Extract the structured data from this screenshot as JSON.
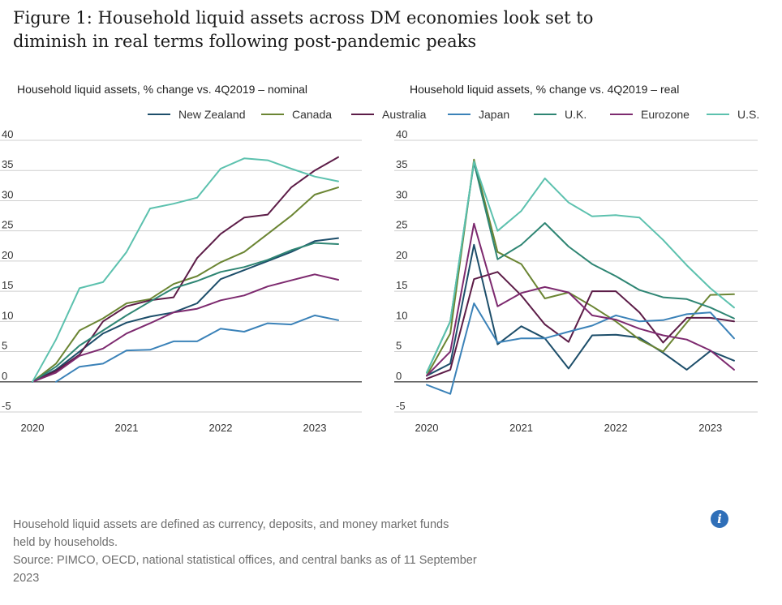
{
  "figure": {
    "title_line1": "Figure 1: Household liquid assets across DM economies look set to",
    "title_line2": "diminish in real terms following post-pandemic peaks"
  },
  "legend": [
    {
      "name": "New Zealand",
      "color": "#1d4e6a"
    },
    {
      "name": "Canada",
      "color": "#6b8533"
    },
    {
      "name": "Australia",
      "color": "#5c1c47"
    },
    {
      "name": "Japan",
      "color": "#3b82b8"
    },
    {
      "name": "U.K.",
      "color": "#2e8573"
    },
    {
      "name": "Eurozone",
      "color": "#7d2a6f"
    },
    {
      "name": "U.S.",
      "color": "#5cc1ae"
    }
  ],
  "chart_data": [
    {
      "type": "line",
      "title": "Household liquid assets, % change vs. 4Q2019 – nominal",
      "ylim": [
        -5,
        40
      ],
      "yticks": [
        -5,
        0,
        5,
        10,
        15,
        20,
        25,
        30,
        35,
        40
      ],
      "xlim": [
        2020,
        2023.5
      ],
      "xticks": [
        2020,
        2021,
        2022,
        2023
      ],
      "grid": "horizontal",
      "x": [
        2020.0,
        2020.25,
        2020.5,
        2020.75,
        2021.0,
        2021.25,
        2021.5,
        2021.75,
        2022.0,
        2022.25,
        2022.5,
        2022.75,
        2023.0,
        2023.25
      ],
      "series": [
        {
          "name": "New Zealand",
          "values": [
            0,
            2,
            5,
            8,
            9.8,
            10.8,
            11.5,
            13,
            17,
            18.5,
            20,
            21.5,
            23.3,
            23.8
          ]
        },
        {
          "name": "Canada",
          "values": [
            0,
            3,
            8.5,
            10.5,
            13,
            13.7,
            16.2,
            17.5,
            19.8,
            21.5,
            24.5,
            27.5,
            31,
            32.2
          ]
        },
        {
          "name": "Australia",
          "values": [
            0,
            1.8,
            4.5,
            10,
            12.5,
            13.5,
            14,
            20.5,
            24.5,
            27.2,
            27.7,
            32.2,
            35,
            37.2
          ]
        },
        {
          "name": "Japan",
          "values": [
            null,
            0,
            2.5,
            3,
            5.2,
            5.3,
            6.7,
            6.7,
            8.8,
            8.3,
            9.7,
            9.5,
            11,
            10.2
          ]
        },
        {
          "name": "U.K.",
          "values": [
            0,
            2.5,
            6,
            8.5,
            11,
            13.3,
            15.5,
            16.7,
            18.2,
            19,
            20.2,
            21.8,
            23,
            22.8
          ]
        },
        {
          "name": "Eurozone",
          "values": [
            0,
            1.5,
            4.3,
            5.5,
            8,
            9.7,
            11.5,
            12.1,
            13.5,
            14.3,
            15.8,
            16.8,
            17.8,
            16.9
          ]
        },
        {
          "name": "U.S.",
          "values": [
            0,
            7,
            15.5,
            16.5,
            21.5,
            28.7,
            29.5,
            30.5,
            35.3,
            37,
            36.7,
            35.3,
            34,
            33.2
          ]
        }
      ]
    },
    {
      "type": "line",
      "title": "Household liquid assets, % change vs. 4Q2019 – real",
      "ylim": [
        -5,
        40
      ],
      "yticks": [
        -5,
        0,
        5,
        10,
        15,
        20,
        25,
        30,
        35,
        40
      ],
      "xlim": [
        2020,
        2023.5
      ],
      "xticks": [
        2020,
        2021,
        2022,
        2023
      ],
      "grid": "horizontal",
      "x": [
        2020.0,
        2020.25,
        2020.5,
        2020.75,
        2021.0,
        2021.25,
        2021.5,
        2021.75,
        2022.0,
        2022.25,
        2022.5,
        2022.75,
        2023.0,
        2023.25
      ],
      "series": [
        {
          "name": "New Zealand",
          "values": [
            1,
            3,
            22.7,
            6.2,
            9.2,
            7.2,
            2.2,
            7.7,
            7.8,
            7.3,
            4.8,
            2,
            5.1,
            3.5
          ]
        },
        {
          "name": "Canada",
          "values": [
            1,
            8,
            36.8,
            21.5,
            19.5,
            13.8,
            14.8,
            12.5,
            10,
            7,
            5,
            9.8,
            14.4,
            14.5
          ]
        },
        {
          "name": "Australia",
          "values": [
            0.5,
            2,
            17,
            18.2,
            14.3,
            9.5,
            6.6,
            15,
            15,
            11.5,
            6.5,
            10.6,
            10.6,
            10
          ]
        },
        {
          "name": "Japan",
          "values": [
            -0.5,
            -2,
            13,
            6.5,
            7.2,
            7.2,
            8.3,
            9.3,
            11,
            10,
            10.2,
            11.2,
            11.5,
            7.2
          ]
        },
        {
          "name": "U.K.",
          "values": [
            1.5,
            10,
            36.3,
            20.3,
            22.7,
            26.3,
            22.4,
            19.5,
            17.5,
            15.2,
            14,
            13.7,
            12.3,
            10.5
          ]
        },
        {
          "name": "Eurozone",
          "values": [
            1,
            5,
            26.2,
            12.5,
            14.7,
            15.7,
            14.8,
            11,
            10.3,
            8.8,
            7.7,
            7,
            5.2,
            2
          ]
        },
        {
          "name": "U.S.",
          "values": [
            1.5,
            10,
            36.5,
            25,
            28.3,
            33.7,
            29.7,
            27.4,
            27.6,
            27.2,
            23.5,
            19.3,
            15.5,
            12.3
          ]
        }
      ]
    }
  ],
  "footnote": {
    "line1": "Household liquid assets are defined as currency, deposits, and money market funds",
    "line2": "held by households.",
    "line3": "Source: PIMCO, OECD, national statistical offices, and central banks as of 11 September",
    "line4": "2023"
  },
  "icons": {
    "info": "info-icon"
  },
  "info_icon_glyph": "i"
}
